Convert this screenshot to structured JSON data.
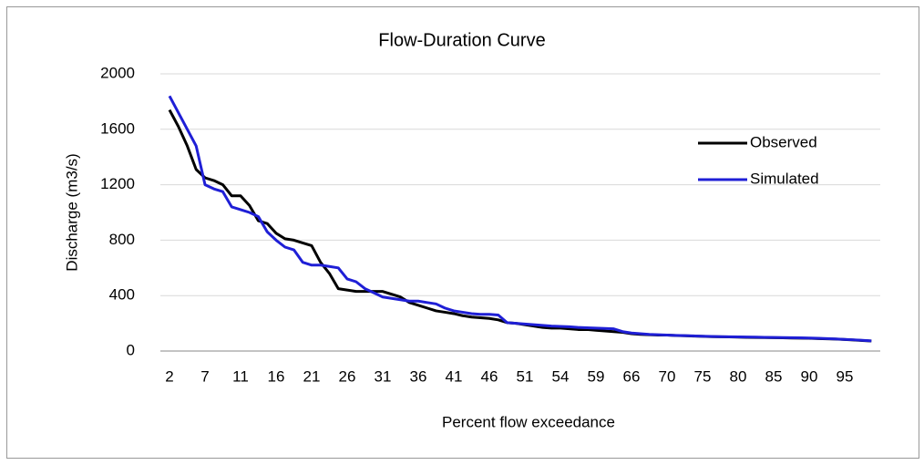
{
  "chart_data": {
    "type": "line",
    "title": "Flow-Duration Curve",
    "x_label": "Percent flow exceedance",
    "y_label": "Discharge (m3/s)",
    "categories": [
      "2",
      null,
      null,
      null,
      "7",
      null,
      null,
      null,
      "11",
      null,
      null,
      null,
      "16",
      null,
      null,
      null,
      "21",
      null,
      null,
      null,
      "26",
      null,
      null,
      null,
      "31",
      null,
      null,
      null,
      "36",
      null,
      null,
      null,
      "41",
      null,
      null,
      null,
      "46",
      null,
      null,
      null,
      "51",
      null,
      null,
      null,
      "54",
      null,
      null,
      null,
      "59",
      null,
      null,
      null,
      "66",
      null,
      null,
      null,
      "70",
      null,
      null,
      null,
      "75",
      null,
      null,
      null,
      "80",
      null,
      null,
      null,
      "85",
      null,
      null,
      null,
      "90",
      null,
      null,
      null,
      "95",
      null,
      null,
      null
    ],
    "series": [
      {
        "name": "Observed",
        "color": "#000000",
        "values": [
          1740,
          1620,
          1480,
          1310,
          1250,
          1230,
          1200,
          1120,
          1120,
          1050,
          940,
          920,
          850,
          810,
          800,
          780,
          760,
          640,
          560,
          450,
          440,
          430,
          430,
          430,
          430,
          410,
          390,
          350,
          330,
          310,
          290,
          280,
          270,
          255,
          245,
          240,
          235,
          225,
          205,
          200,
          190,
          180,
          170,
          165,
          165,
          160,
          155,
          155,
          150,
          145,
          140,
          135,
          125,
          120,
          118,
          115,
          115,
          112,
          110,
          108,
          106,
          104,
          103,
          102,
          100,
          99,
          98,
          97,
          96,
          95,
          94,
          93,
          92,
          90,
          88,
          86,
          83,
          80,
          76,
          72
        ]
      },
      {
        "name": "Simulated",
        "color": "#1f1fd6",
        "values": [
          1840,
          1720,
          1600,
          1480,
          1200,
          1170,
          1150,
          1040,
          1020,
          1000,
          970,
          860,
          800,
          750,
          730,
          640,
          620,
          620,
          610,
          600,
          520,
          500,
          450,
          420,
          390,
          380,
          370,
          360,
          360,
          350,
          340,
          310,
          290,
          280,
          270,
          265,
          265,
          260,
          205,
          200,
          195,
          190,
          185,
          180,
          178,
          175,
          170,
          168,
          165,
          163,
          160,
          140,
          130,
          125,
          120,
          118,
          115,
          113,
          111,
          109,
          107,
          105,
          104,
          103,
          102,
          101,
          100,
          99,
          98,
          97,
          96,
          95,
          94,
          92,
          90,
          87,
          84,
          81,
          77,
          73
        ]
      }
    ],
    "ylim": [
      0,
      2000
    ],
    "yticks": [
      0,
      400,
      800,
      1200,
      1600,
      2000
    ],
    "grid": true,
    "legend": "right"
  }
}
